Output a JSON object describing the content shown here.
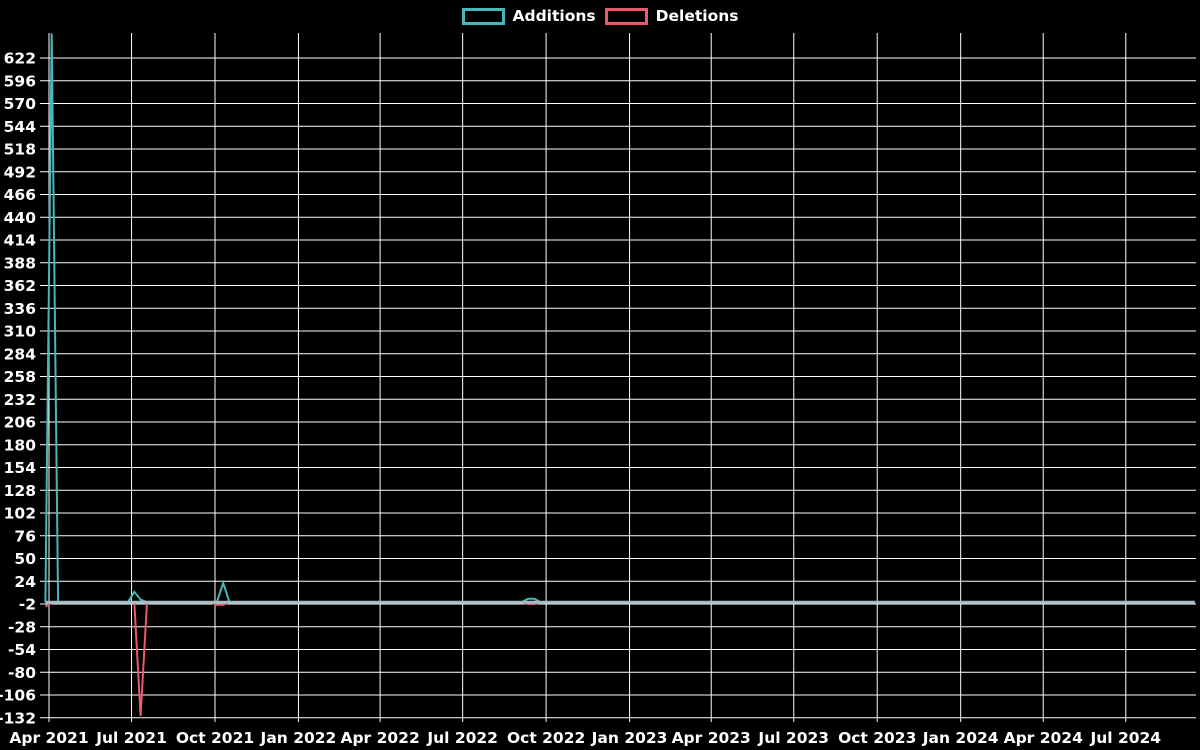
{
  "chart_data": {
    "type": "line",
    "title": "",
    "legend": [
      {
        "name": "Additions",
        "color": "#49b6bb"
      },
      {
        "name": "Deletions",
        "color": "#ea5a6f"
      }
    ],
    "x_axis": {
      "ticks": [
        {
          "label": "Apr 2021",
          "date": "2021-04-01"
        },
        {
          "label": "Jul 2021",
          "date": "2021-07-01"
        },
        {
          "label": "Oct 2021",
          "date": "2021-10-01"
        },
        {
          "label": "Jan 2022",
          "date": "2022-01-01"
        },
        {
          "label": "Apr 2022",
          "date": "2022-04-01"
        },
        {
          "label": "Jul 2022",
          "date": "2022-07-01"
        },
        {
          "label": "Oct 2022",
          "date": "2022-10-01"
        },
        {
          "label": "Jan 2023",
          "date": "2023-01-01"
        },
        {
          "label": "Apr 2023",
          "date": "2023-04-01"
        },
        {
          "label": "Jul 2023",
          "date": "2023-07-01"
        },
        {
          "label": "Oct 2023",
          "date": "2023-10-01"
        },
        {
          "label": "Jan 2024",
          "date": "2024-01-01"
        },
        {
          "label": "Apr 2024",
          "date": "2024-04-01"
        },
        {
          "label": "Jul 2024",
          "date": "2024-07-01"
        }
      ],
      "range": [
        "2021-03-28",
        "2024-09-15"
      ]
    },
    "y_axis": {
      "ticks": [
        622,
        596,
        570,
        544,
        518,
        492,
        466,
        440,
        414,
        388,
        362,
        336,
        310,
        284,
        258,
        232,
        206,
        180,
        154,
        128,
        102,
        76,
        50,
        24,
        -2,
        -28,
        -54,
        -80,
        -106,
        -132
      ],
      "min": -132,
      "max": 650
    },
    "grid": {
      "color": "#ffffff",
      "on": true
    },
    "baseline": {
      "value": 0,
      "color": "#a5bcc4"
    },
    "series": [
      {
        "name": "Additions",
        "color": "#49b6bb",
        "points": [
          [
            "2021-03-28",
            0
          ],
          [
            "2021-04-04",
            650
          ],
          [
            "2021-04-11",
            0
          ],
          [
            "2021-06-27",
            0
          ],
          [
            "2021-07-04",
            12
          ],
          [
            "2021-07-11",
            3
          ],
          [
            "2021-07-18",
            0
          ],
          [
            "2021-10-03",
            0
          ],
          [
            "2021-10-10",
            22
          ],
          [
            "2021-10-17",
            0
          ],
          [
            "2022-09-04",
            0
          ],
          [
            "2022-09-11",
            4
          ],
          [
            "2022-09-18",
            4
          ],
          [
            "2022-09-25",
            0
          ],
          [
            "2024-09-15",
            0
          ]
        ]
      },
      {
        "name": "Deletions",
        "color": "#ea5a6f",
        "points": [
          [
            "2021-03-28",
            -5
          ],
          [
            "2021-04-04",
            0
          ],
          [
            "2021-07-04",
            0
          ],
          [
            "2021-07-11",
            -130
          ],
          [
            "2021-07-18",
            0
          ],
          [
            "2021-09-26",
            0
          ],
          [
            "2021-10-03",
            -3
          ],
          [
            "2021-10-10",
            -3
          ],
          [
            "2021-10-17",
            0
          ],
          [
            "2022-09-04",
            0
          ],
          [
            "2022-09-11",
            -2
          ],
          [
            "2022-09-18",
            -2
          ],
          [
            "2022-09-25",
            0
          ],
          [
            "2024-09-15",
            0
          ]
        ]
      }
    ]
  }
}
